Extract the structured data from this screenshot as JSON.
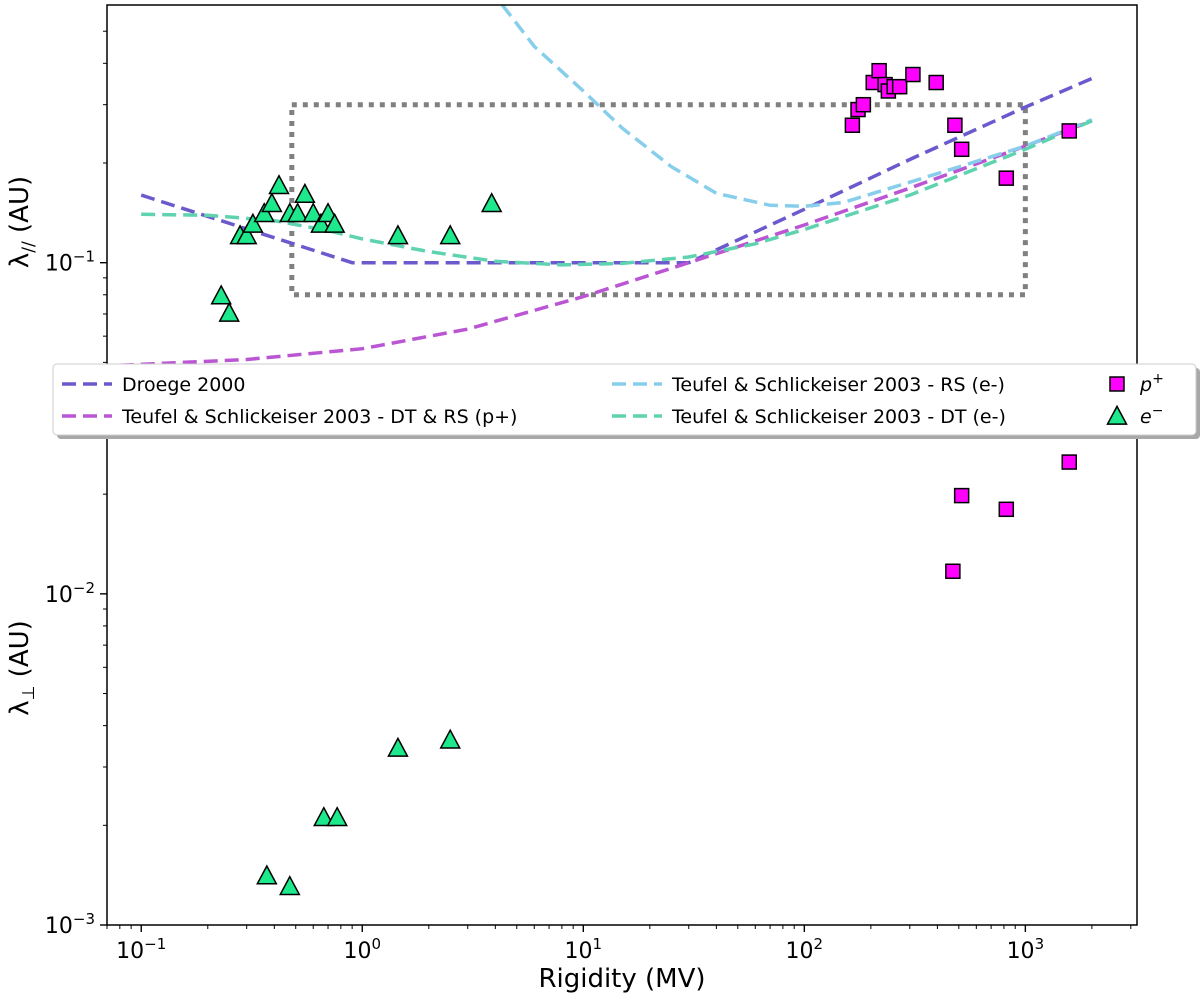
{
  "chart_data": {
    "type": "scatter",
    "xlabel": "Rigidity (MV)",
    "ylabel_top": "λ// (AU)",
    "ylabel_bottom": "λ⊥ (AU)",
    "x_scale": "log",
    "y_scale": "log",
    "xlim": [
      0.07,
      3200
    ],
    "ylim": [
      0.001,
      0.6
    ],
    "x_ticks": [
      {
        "value": 0.1,
        "base": "10",
        "exp": "−1"
      },
      {
        "value": 1,
        "base": "10",
        "exp": "0"
      },
      {
        "value": 10,
        "base": "10",
        "exp": "1"
      },
      {
        "value": 100,
        "base": "10",
        "exp": "2"
      },
      {
        "value": 1000,
        "base": "10",
        "exp": "3"
      }
    ],
    "y_ticks": [
      {
        "value": 0.001,
        "base": "10",
        "exp": "−3"
      },
      {
        "value": 0.01,
        "base": "10",
        "exp": "−2"
      },
      {
        "value": 0.1,
        "base": "10",
        "exp": "−1"
      }
    ],
    "box": {
      "x": [
        0.48,
        1000
      ],
      "y": [
        0.08,
        0.3
      ],
      "style": "dotted",
      "color": "#808080"
    },
    "lines": [
      {
        "name": "Droege 2000",
        "color": "#6A5ACD",
        "x": [
          0.1,
          0.9,
          1,
          30,
          100,
          300,
          1000,
          2000
        ],
        "y": [
          0.16,
          0.1,
          0.1,
          0.1,
          0.145,
          0.205,
          0.295,
          0.36
        ]
      },
      {
        "name": "Teufel & Schlickeiser 2003 - DT & RS (p+)",
        "color": "#BA55D3",
        "x": [
          0.08,
          0.3,
          1,
          3,
          10,
          30,
          100,
          300,
          1000,
          2000
        ],
        "y": [
          0.049,
          0.051,
          0.055,
          0.063,
          0.079,
          0.1,
          0.13,
          0.168,
          0.225,
          0.268
        ]
      },
      {
        "name": "Teufel & Schlickeiser 2003 - RS (e-)",
        "color": "#87CEEB",
        "x": [
          4.3,
          6,
          10,
          15,
          25,
          40,
          70,
          100,
          150,
          300,
          1000,
          2000
        ],
        "y": [
          0.6,
          0.45,
          0.33,
          0.255,
          0.195,
          0.162,
          0.149,
          0.148,
          0.152,
          0.175,
          0.225,
          0.27
        ]
      },
      {
        "name": "Teufel & Schlickeiser 2003 - DT (e-)",
        "color": "#5FD3B0",
        "x": [
          0.1,
          0.2,
          0.4,
          0.7,
          1,
          2,
          4,
          8,
          15,
          30,
          60,
          100,
          300,
          1000,
          2000
        ],
        "y": [
          0.14,
          0.139,
          0.134,
          0.125,
          0.118,
          0.108,
          0.101,
          0.0985,
          0.0995,
          0.104,
          0.114,
          0.126,
          0.16,
          0.22,
          0.268
        ]
      }
    ],
    "series": [
      {
        "name": "p+",
        "legend_base": "p",
        "legend_sup": "+",
        "marker": "square",
        "color": "#FF00FF",
        "x": [
          165,
          175,
          185,
          205,
          218,
          232,
          240,
          255,
          270,
          310,
          395,
          480,
          515,
          820,
          1580,
          470,
          515,
          820,
          1580
        ],
        "y": [
          0.26,
          0.29,
          0.3,
          0.35,
          0.38,
          0.345,
          0.33,
          0.34,
          0.34,
          0.37,
          0.35,
          0.26,
          0.22,
          0.18,
          0.25,
          0.0117,
          0.0198,
          0.018,
          0.025
        ]
      },
      {
        "name": "e-",
        "legend_base": "e",
        "legend_sup": "−",
        "marker": "triangle",
        "color": "#1DE88B",
        "x": [
          0.23,
          0.25,
          0.28,
          0.3,
          0.32,
          0.36,
          0.39,
          0.42,
          0.47,
          0.51,
          0.55,
          0.6,
          0.65,
          0.7,
          0.75,
          1.45,
          2.5,
          3.85,
          0.37,
          0.47,
          0.67,
          0.77,
          1.45,
          2.5
        ],
        "y": [
          0.079,
          0.07,
          0.12,
          0.12,
          0.13,
          0.14,
          0.15,
          0.17,
          0.14,
          0.14,
          0.16,
          0.14,
          0.13,
          0.14,
          0.13,
          0.12,
          0.12,
          0.15,
          0.0014,
          0.0013,
          0.0021,
          0.0021,
          0.0034,
          0.0036
        ]
      }
    ]
  }
}
